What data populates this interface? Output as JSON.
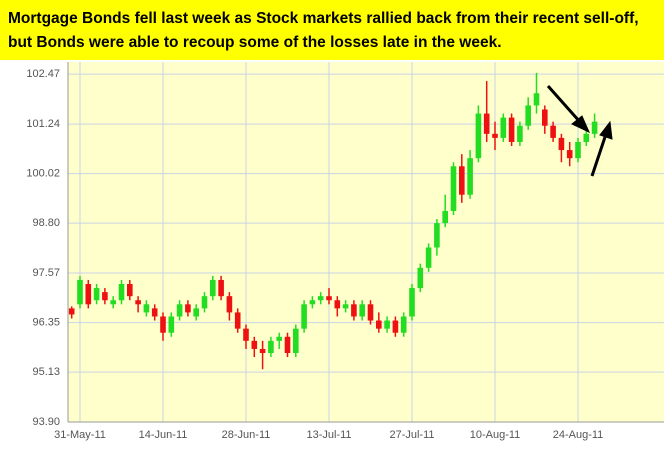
{
  "chart_data": {
    "type": "candlestick",
    "title_lines": [
      "Mortgage Bonds fell last week as Stock markets rallied back from their recent sell-off,",
      "but Bonds were able to recoup some of the losses late in the week."
    ],
    "categories": [
      null,
      "31-May-11",
      null,
      null,
      null,
      null,
      null,
      null,
      null,
      null,
      null,
      "14-Jun-11",
      null,
      null,
      null,
      null,
      null,
      null,
      null,
      null,
      null,
      "28-Jun-11",
      null,
      null,
      null,
      null,
      null,
      null,
      null,
      null,
      null,
      "13-Jul-11",
      null,
      null,
      null,
      null,
      null,
      null,
      null,
      null,
      null,
      "27-Jul-11",
      null,
      null,
      null,
      null,
      null,
      null,
      null,
      null,
      null,
      "10-Aug-11",
      null,
      null,
      null,
      null,
      null,
      null,
      null,
      null,
      null,
      "24-Aug-11",
      null,
      null
    ],
    "ohlc": [
      [
        96.7,
        96.75,
        96.45,
        96.55
      ],
      [
        96.8,
        97.5,
        96.7,
        97.4
      ],
      [
        97.3,
        97.4,
        96.7,
        96.8
      ],
      [
        96.9,
        97.3,
        96.8,
        97.2
      ],
      [
        97.1,
        97.2,
        96.8,
        96.9
      ],
      [
        96.8,
        97.0,
        96.7,
        96.9
      ],
      [
        96.9,
        97.4,
        96.8,
        97.3
      ],
      [
        97.3,
        97.4,
        96.9,
        97.0
      ],
      [
        96.9,
        97.0,
        96.6,
        96.8
      ],
      [
        96.6,
        96.9,
        96.5,
        96.8
      ],
      [
        96.7,
        96.8,
        96.4,
        96.5
      ],
      [
        96.5,
        96.6,
        95.9,
        96.1
      ],
      [
        96.1,
        96.6,
        96.0,
        96.5
      ],
      [
        96.5,
        96.9,
        96.4,
        96.8
      ],
      [
        96.8,
        96.9,
        96.5,
        96.6
      ],
      [
        96.5,
        96.8,
        96.4,
        96.7
      ],
      [
        96.7,
        97.1,
        96.6,
        97.0
      ],
      [
        97.0,
        97.5,
        96.9,
        97.4
      ],
      [
        97.4,
        97.5,
        96.9,
        97.0
      ],
      [
        97.0,
        97.1,
        96.4,
        96.6
      ],
      [
        96.6,
        96.7,
        96.1,
        96.2
      ],
      [
        96.2,
        96.3,
        95.7,
        95.9
      ],
      [
        95.9,
        96.0,
        95.5,
        95.7
      ],
      [
        95.7,
        95.9,
        95.2,
        95.6
      ],
      [
        95.6,
        96.0,
        95.5,
        95.9
      ],
      [
        95.9,
        96.1,
        95.7,
        96.0
      ],
      [
        96.0,
        96.1,
        95.5,
        95.6
      ],
      [
        95.6,
        96.3,
        95.5,
        96.2
      ],
      [
        96.2,
        96.9,
        96.1,
        96.8
      ],
      [
        96.8,
        97.0,
        96.7,
        96.9
      ],
      [
        96.9,
        97.1,
        96.8,
        97.0
      ],
      [
        97.0,
        97.2,
        96.8,
        96.9
      ],
      [
        96.9,
        97.0,
        96.5,
        96.7
      ],
      [
        96.7,
        96.9,
        96.6,
        96.8
      ],
      [
        96.8,
        96.9,
        96.4,
        96.5
      ],
      [
        96.5,
        96.9,
        96.4,
        96.8
      ],
      [
        96.8,
        96.9,
        96.3,
        96.4
      ],
      [
        96.4,
        96.6,
        96.1,
        96.2
      ],
      [
        96.2,
        96.5,
        96.1,
        96.4
      ],
      [
        96.4,
        96.5,
        96.0,
        96.1
      ],
      [
        96.1,
        96.6,
        96.0,
        96.5
      ],
      [
        96.5,
        97.3,
        96.4,
        97.2
      ],
      [
        97.2,
        97.8,
        97.1,
        97.7
      ],
      [
        97.7,
        98.3,
        97.6,
        98.2
      ],
      [
        98.2,
        98.9,
        98.0,
        98.8
      ],
      [
        98.8,
        99.5,
        98.7,
        99.1
      ],
      [
        99.1,
        100.3,
        99.0,
        100.2
      ],
      [
        100.2,
        100.5,
        99.3,
        99.5
      ],
      [
        99.5,
        100.6,
        99.4,
        100.4
      ],
      [
        100.4,
        101.7,
        100.3,
        101.5
      ],
      [
        101.5,
        102.3,
        100.8,
        101.0
      ],
      [
        101.0,
        101.3,
        100.6,
        100.9
      ],
      [
        100.9,
        101.5,
        100.8,
        101.4
      ],
      [
        101.4,
        101.5,
        100.7,
        100.8
      ],
      [
        100.8,
        101.3,
        100.7,
        101.2
      ],
      [
        101.2,
        101.9,
        101.1,
        101.7
      ],
      [
        101.7,
        102.5,
        101.5,
        102.0
      ],
      [
        101.6,
        101.7,
        101.0,
        101.2
      ],
      [
        101.2,
        101.3,
        100.8,
        100.9
      ],
      [
        100.9,
        101.0,
        100.3,
        100.6
      ],
      [
        100.6,
        100.8,
        100.2,
        100.4
      ],
      [
        100.4,
        100.9,
        100.3,
        100.8
      ],
      [
        100.8,
        101.1,
        100.7,
        101.0
      ],
      [
        101.0,
        101.5,
        100.9,
        101.3
      ]
    ],
    "up_color": "#22dd22",
    "down_color": "#ee1111",
    "ylim": [
      93.9,
      102.77
    ],
    "yticks": [
      {
        "value": 93.9,
        "label": "93.90"
      },
      95.13,
      96.35,
      97.57,
      {
        "value": 98.8,
        "label": "98.80"
      },
      100.02,
      101.24,
      102.47
    ],
    "grid": true
  }
}
